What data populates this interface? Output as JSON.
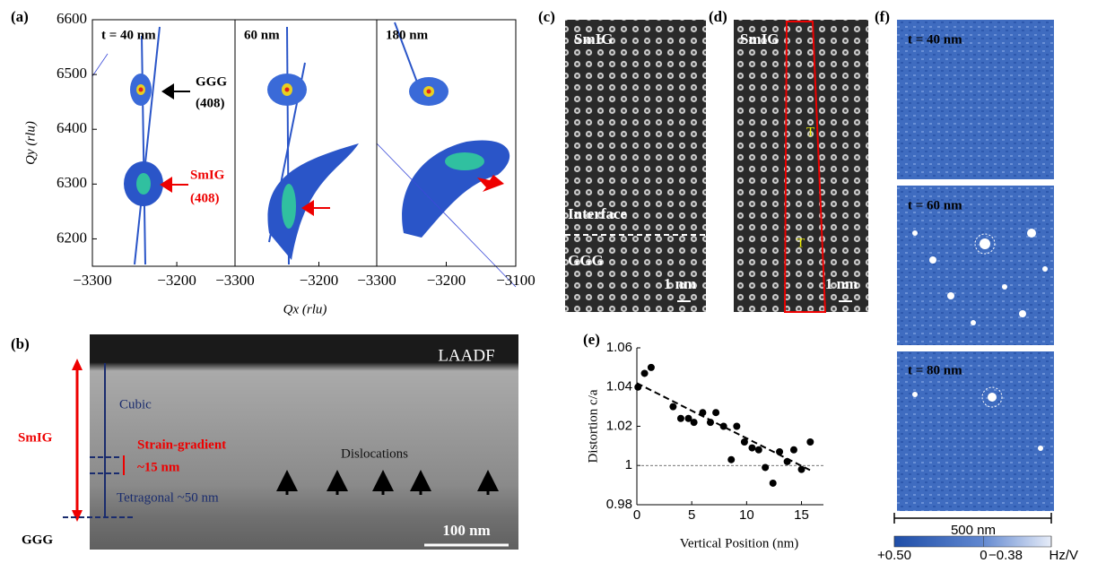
{
  "panel_labels": [
    "(a)",
    "(b)",
    "(c)",
    "(d)",
    "(e)",
    "(f)"
  ],
  "chart_data": [
    {
      "type": "rsm",
      "title": "t = 40 nm",
      "ylabel": "Qy (rlu)",
      "xlim": [
        -3300,
        -3131
      ],
      "xticks": [
        {
          "value": -3300,
          "label": "−3300"
        },
        {
          "value": -3200,
          "label": "−3200"
        }
      ],
      "ylim": [
        6150,
        6600
      ],
      "yticks": [
        6200,
        6300,
        6400,
        6500,
        6600
      ],
      "annotations": [
        "GGG",
        "(408)",
        "SmIG",
        "(408)"
      ]
    },
    {
      "type": "rsm",
      "title": "60 nm",
      "xlabel": "Qx (rlu)",
      "xlim": [
        -3300,
        -3131
      ],
      "xticks": [
        {
          "value": -3300,
          "label": "−3300"
        },
        {
          "value": -3200,
          "label": "−3200"
        }
      ],
      "ylim": [
        6150,
        6600
      ]
    },
    {
      "type": "rsm",
      "title": "180 nm",
      "xlim": [
        -3300,
        -3100
      ],
      "xticks": [
        {
          "value": -3300,
          "label": "−3300"
        },
        {
          "value": -3200,
          "label": "−3200"
        },
        {
          "value": -3100,
          "label": "−3100"
        }
      ],
      "ylim": [
        6150,
        6600
      ]
    },
    {
      "type": "scatter",
      "xlabel": "Vertical Position (nm)",
      "ylabel": "Distortion c/a",
      "x": [
        0.1,
        0.7,
        1.3,
        3.3,
        4.0,
        4.7,
        5.2,
        6.0,
        6.7,
        7.2,
        7.9,
        8.6,
        9.1,
        9.8,
        10.5,
        11.1,
        11.7,
        12.4,
        13.0,
        13.7,
        14.3,
        15.0,
        15.8
      ],
      "values": [
        1.04,
        1.047,
        1.05,
        1.03,
        1.024,
        1.024,
        1.022,
        1.027,
        1.022,
        1.027,
        1.02,
        1.003,
        1.02,
        1.012,
        1.009,
        1.008,
        0.999,
        0.991,
        1.007,
        1.002,
        1.008,
        0.998,
        1.012
      ],
      "color": "#000000",
      "fit": {
        "x": [
          0,
          16
        ],
        "y": [
          1.042,
          0.997
        ]
      },
      "reference_line": 1,
      "xlim": [
        0,
        17
      ],
      "xticks": [
        0,
        5,
        10,
        15
      ],
      "ylim": [
        0.98,
        1.06
      ],
      "yticks": [
        0.98,
        1,
        1.02,
        1.04,
        1.06
      ]
    }
  ],
  "panel_b": {
    "detector": "LAADF",
    "layers": [
      "Cubic",
      "Strain-gradient",
      "~15 nm",
      "Tetragonal ~50 nm"
    ],
    "film": "SmIG",
    "substrate": "GGG",
    "feature": "Dislocations",
    "scale_bar": "100 nm"
  },
  "panel_c": {
    "top": "SmIG",
    "interface": "Interface",
    "bottom": "GGG",
    "scale_bar": "1 nm"
  },
  "panel_d": {
    "top": "SmIG",
    "scale_bar": "1 nm",
    "markers": [
      "T",
      "T"
    ]
  },
  "panel_f": {
    "images": [
      "t = 40 nm",
      "t = 60 nm",
      "t = 80 nm"
    ],
    "scale_bar": "500 nm",
    "colorbar": {
      "range": [
        0.5,
        -0.38
      ],
      "ticks": [
        {
          "value": 0.5,
          "label": "+0.50"
        },
        0,
        {
          "value": -0.38,
          "label": "−0.38"
        }
      ],
      "unit": "Hz/V"
    }
  }
}
